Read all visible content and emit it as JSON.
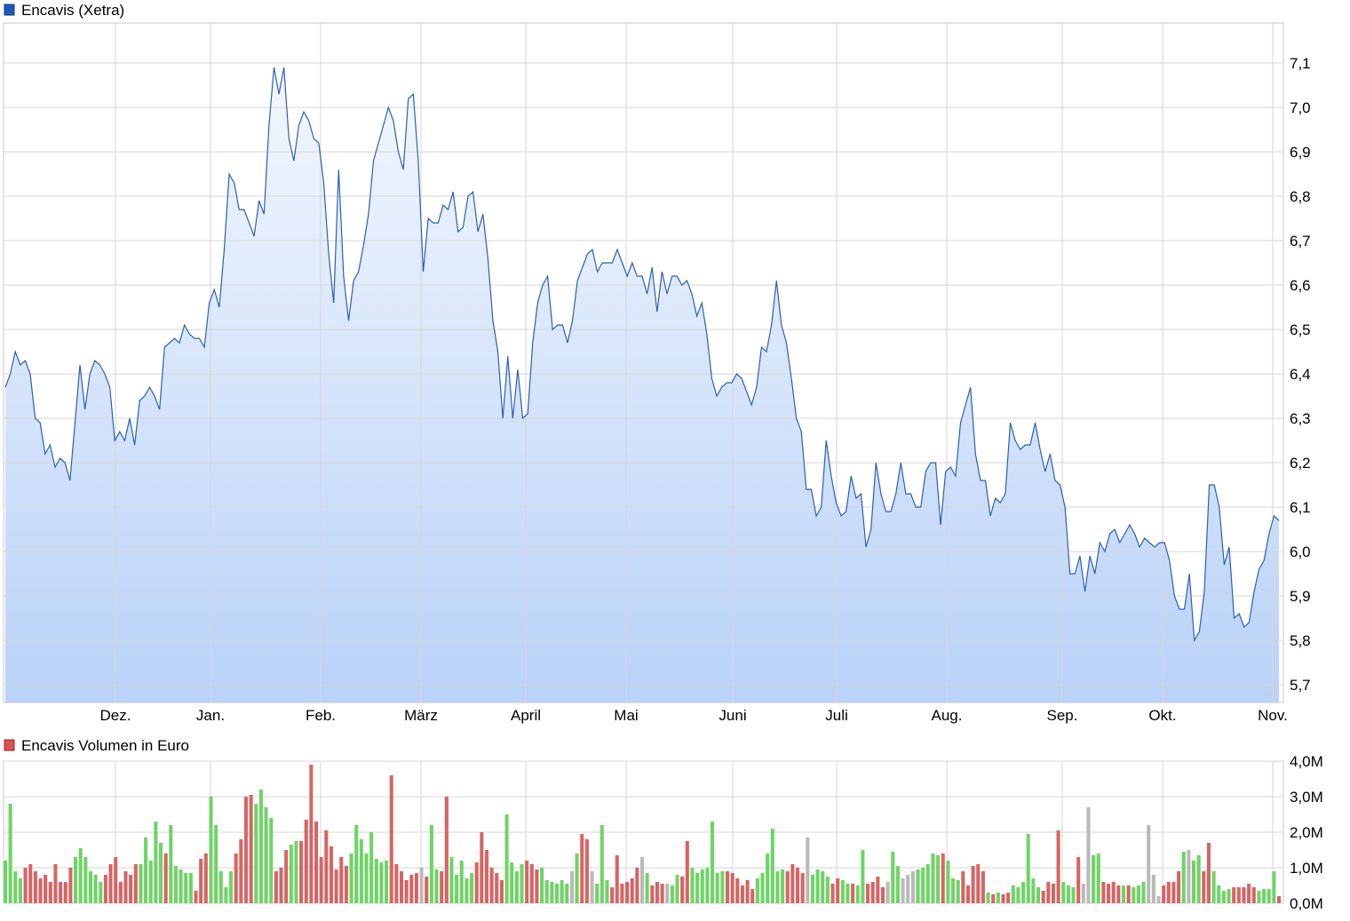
{
  "chart_data": [
    {
      "type": "area",
      "title": "Encavis (Xetra)",
      "legend": {
        "label": "Encavis (Xetra)",
        "color": "#1f57b8",
        "placement": "top-left"
      },
      "line_color": "#2b5fb3",
      "fill_top_color": "#f3f7fd",
      "fill_bottom_color": "#b9d2f8",
      "grid": true,
      "ylim": [
        5.66,
        7.19
      ],
      "y_scale": "linear",
      "y_ticks": [
        5.7,
        5.8,
        5.9,
        6.0,
        6.1,
        6.2,
        6.3,
        6.4,
        6.5,
        6.6,
        6.7,
        6.8,
        6.9,
        7.0,
        7.1
      ],
      "y_tick_labels": [
        "5,7",
        "5,8",
        "5,9",
        "6,0",
        "6,1",
        "6,2",
        "6,3",
        "6,4",
        "6,5",
        "6,6",
        "6,7",
        "6,8",
        "6,9",
        "7,0",
        "7,1"
      ],
      "x_month_labels": [
        "Dez.",
        "Jan.",
        "Feb.",
        "März",
        "April",
        "Mai",
        "Juni",
        "Juli",
        "Aug.",
        "Sep.",
        "Okt.",
        "Nov."
      ],
      "values": [
        6.37,
        6.4,
        6.45,
        6.42,
        6.43,
        6.4,
        6.3,
        6.29,
        6.22,
        6.24,
        6.19,
        6.21,
        6.2,
        6.16,
        6.29,
        6.42,
        6.32,
        6.4,
        6.43,
        6.42,
        6.4,
        6.37,
        6.25,
        6.27,
        6.25,
        6.3,
        6.24,
        6.34,
        6.35,
        6.37,
        6.35,
        6.32,
        6.46,
        6.47,
        6.48,
        6.47,
        6.51,
        6.49,
        6.48,
        6.48,
        6.46,
        6.56,
        6.59,
        6.55,
        6.68,
        6.85,
        6.83,
        6.77,
        6.77,
        6.74,
        6.71,
        6.79,
        6.76,
        6.96,
        7.09,
        7.03,
        7.09,
        6.93,
        6.88,
        6.96,
        6.99,
        6.97,
        6.93,
        6.92,
        6.83,
        6.67,
        6.56,
        6.86,
        6.62,
        6.52,
        6.61,
        6.63,
        6.69,
        6.76,
        6.88,
        6.92,
        6.96,
        7.0,
        6.97,
        6.9,
        6.86,
        7.02,
        7.03,
        6.88,
        6.63,
        6.75,
        6.74,
        6.74,
        6.78,
        6.77,
        6.81,
        6.72,
        6.73,
        6.8,
        6.81,
        6.72,
        6.76,
        6.66,
        6.52,
        6.45,
        6.3,
        6.44,
        6.3,
        6.41,
        6.3,
        6.31,
        6.47,
        6.56,
        6.6,
        6.62,
        6.5,
        6.51,
        6.51,
        6.47,
        6.52,
        6.61,
        6.64,
        6.67,
        6.68,
        6.63,
        6.65,
        6.65,
        6.65,
        6.68,
        6.65,
        6.62,
        6.65,
        6.62,
        6.62,
        6.58,
        6.64,
        6.54,
        6.63,
        6.58,
        6.62,
        6.62,
        6.6,
        6.61,
        6.58,
        6.53,
        6.56,
        6.49,
        6.39,
        6.35,
        6.37,
        6.38,
        6.38,
        6.4,
        6.39,
        6.36,
        6.33,
        6.37,
        6.46,
        6.45,
        6.51,
        6.61,
        6.51,
        6.47,
        6.39,
        6.3,
        6.27,
        6.14,
        6.14,
        6.08,
        6.1,
        6.25,
        6.17,
        6.11,
        6.08,
        6.09,
        6.17,
        6.12,
        6.13,
        6.01,
        6.05,
        6.2,
        6.13,
        6.09,
        6.09,
        6.13,
        6.2,
        6.13,
        6.13,
        6.1,
        6.1,
        6.18,
        6.2,
        6.2,
        6.06,
        6.18,
        6.19,
        6.17,
        6.29,
        6.33,
        6.37,
        6.22,
        6.16,
        6.16,
        6.08,
        6.12,
        6.11,
        6.13,
        6.29,
        6.25,
        6.23,
        6.24,
        6.24,
        6.29,
        6.23,
        6.18,
        6.22,
        6.16,
        6.15,
        6.1,
        5.95,
        5.95,
        5.99,
        5.91,
        5.99,
        5.95,
        6.02,
        6.0,
        6.04,
        6.05,
        6.02,
        6.04,
        6.06,
        6.04,
        6.01,
        6.03,
        6.02,
        6.01,
        6.02,
        6.02,
        5.98,
        5.9,
        5.87,
        5.87,
        5.95,
        5.8,
        5.82,
        5.91,
        6.15,
        6.15,
        6.1,
        5.97,
        6.01,
        5.85,
        5.86,
        5.83,
        5.84,
        5.91,
        5.96,
        5.98,
        6.04,
        6.08,
        6.07
      ]
    },
    {
      "type": "bar",
      "title": "Encavis Volumen in Euro",
      "legend": {
        "label": "Encavis Volumen in Euro",
        "color": "#d9534f",
        "placement": "top-left"
      },
      "colors": {
        "up": "#6ed466",
        "down": "#d76464",
        "flat": "#b9b9b9"
      },
      "grid": true,
      "ylim": [
        0,
        4.0
      ],
      "y_unit": "Mio. Euro",
      "y_ticks": [
        0,
        1,
        2,
        3,
        4
      ],
      "y_tick_labels": [
        "0,0M",
        "1,0M",
        "2,0M",
        "3,0M",
        "4,0M"
      ],
      "values": [
        1.2,
        2.8,
        0.9,
        0.7,
        1.0,
        1.1,
        0.9,
        0.7,
        0.8,
        0.6,
        1.1,
        0.6,
        0.6,
        1.0,
        1.3,
        1.55,
        1.3,
        0.9,
        0.8,
        0.6,
        0.8,
        1.1,
        1.3,
        0.6,
        0.9,
        0.8,
        1.1,
        1.1,
        1.85,
        1.2,
        2.3,
        1.7,
        1.4,
        2.2,
        1.05,
        0.95,
        0.85,
        0.85,
        0.35,
        1.25,
        1.4,
        3.0,
        2.2,
        0.9,
        0.45,
        0.9,
        1.4,
        1.8,
        3.0,
        3.05,
        2.8,
        3.2,
        2.7,
        2.4,
        0.9,
        1.0,
        1.5,
        1.65,
        1.75,
        1.75,
        2.35,
        3.9,
        2.3,
        1.3,
        2.05,
        1.6,
        0.95,
        1.3,
        1.05,
        1.4,
        2.2,
        1.8,
        1.4,
        2.0,
        1.25,
        1.15,
        1.2,
        3.6,
        1.1,
        0.9,
        0.65,
        0.8,
        0.85,
        1.0,
        0.75,
        2.2,
        0.95,
        0.9,
        3.0,
        1.3,
        0.8,
        1.2,
        0.7,
        0.85,
        1.15,
        2.0,
        1.5,
        1.0,
        0.85,
        0.65,
        2.5,
        1.15,
        0.9,
        1.1,
        1.2,
        1.1,
        0.95,
        1.0,
        0.65,
        0.6,
        0.55,
        0.65,
        0.55,
        0.9,
        1.4,
        1.95,
        1.8,
        0.9,
        0.55,
        2.2,
        0.65,
        0.45,
        1.35,
        0.55,
        0.6,
        0.7,
        1.0,
        1.3,
        0.85,
        0.5,
        0.6,
        0.55,
        0.55,
        0.5,
        0.8,
        0.75,
        1.75,
        1.0,
        0.85,
        0.95,
        1.0,
        2.3,
        0.85,
        0.9,
        0.9,
        0.85,
        0.7,
        0.5,
        0.65,
        0.4,
        0.7,
        0.85,
        1.4,
        2.1,
        0.9,
        0.95,
        0.9,
        1.1,
        1.0,
        0.85,
        1.85,
        0.8,
        0.95,
        0.9,
        0.75,
        0.55,
        0.7,
        0.65,
        0.55,
        0.55,
        0.5,
        1.5,
        0.55,
        0.6,
        0.75,
        0.45,
        0.6,
        1.45,
        1.05,
        0.7,
        0.8,
        0.9,
        0.95,
        1.0,
        1.1,
        1.4,
        1.35,
        1.4,
        1.2,
        0.7,
        0.65,
        0.9,
        0.5,
        1.05,
        1.1,
        0.9,
        0.3,
        0.25,
        0.3,
        0.25,
        0.3,
        0.5,
        0.45,
        0.6,
        1.95,
        0.7,
        0.45,
        0.35,
        0.6,
        0.55,
        2.05,
        0.6,
        0.5,
        0.45,
        1.3,
        0.55,
        2.7,
        1.35,
        1.4,
        0.6,
        0.55,
        0.6,
        0.5,
        0.5,
        0.5,
        0.45,
        0.5,
        0.6,
        2.2,
        0.8,
        0.2,
        0.5,
        0.6,
        0.6,
        0.9,
        1.45,
        1.5,
        1.2,
        1.35,
        0.9,
        1.7,
        0.9,
        0.5,
        0.35,
        0.4,
        0.45,
        0.45,
        0.45,
        0.55,
        0.45,
        0.35,
        0.4,
        0.4,
        0.9,
        0.2
      ],
      "directions": [
        "u",
        "u",
        "u",
        "u",
        "d",
        "d",
        "d",
        "d",
        "d",
        "d",
        "d",
        "d",
        "d",
        "d",
        "u",
        "u",
        "u",
        "u",
        "u",
        "u",
        "d",
        "d",
        "d",
        "d",
        "d",
        "d",
        "d",
        "u",
        "u",
        "u",
        "u",
        "u",
        "d",
        "u",
        "u",
        "u",
        "u",
        "u",
        "d",
        "d",
        "d",
        "u",
        "u",
        "u",
        "u",
        "u",
        "d",
        "d",
        "d",
        "d",
        "u",
        "u",
        "u",
        "u",
        "d",
        "d",
        "d",
        "u",
        "u",
        "d",
        "d",
        "d",
        "d",
        "d",
        "d",
        "d",
        "d",
        "d",
        "d",
        "u",
        "u",
        "u",
        "u",
        "u",
        "u",
        "u",
        "u",
        "d",
        "d",
        "d",
        "d",
        "d",
        "d",
        "f",
        "d",
        "u",
        "u",
        "d",
        "d",
        "u",
        "u",
        "u",
        "u",
        "u",
        "d",
        "d",
        "d",
        "d",
        "d",
        "d",
        "u",
        "u",
        "u",
        "u",
        "d",
        "d",
        "d",
        "u",
        "u",
        "u",
        "u",
        "u",
        "u",
        "f",
        "u",
        "d",
        "d",
        "f",
        "u",
        "u",
        "u",
        "d",
        "d",
        "d",
        "d",
        "d",
        "d",
        "f",
        "u",
        "d",
        "d",
        "d",
        "f",
        "u",
        "u",
        "d",
        "d",
        "u",
        "u",
        "u",
        "u",
        "u",
        "u",
        "u",
        "d",
        "d",
        "d",
        "d",
        "d",
        "d",
        "u",
        "u",
        "u",
        "u",
        "u",
        "u",
        "d",
        "d",
        "d",
        "d",
        "f",
        "u",
        "u",
        "u",
        "u",
        "d",
        "d",
        "u",
        "u",
        "d",
        "u",
        "u",
        "d",
        "d",
        "d",
        "d",
        "f",
        "u",
        "u",
        "f",
        "f",
        "f",
        "u",
        "u",
        "u",
        "u",
        "u",
        "d",
        "u",
        "u",
        "u",
        "d",
        "d",
        "d",
        "d",
        "d",
        "u",
        "d",
        "u",
        "d",
        "d",
        "u",
        "u",
        "u",
        "u",
        "u",
        "u",
        "d",
        "d",
        "d",
        "d",
        "u",
        "u",
        "u",
        "d",
        "f",
        "f",
        "u",
        "u",
        "d",
        "d",
        "d",
        "d",
        "u",
        "d",
        "u",
        "u",
        "u",
        "f",
        "f",
        "f",
        "d",
        "d",
        "d",
        "d",
        "u",
        "f",
        "u",
        "u",
        "d",
        "d",
        "u",
        "u",
        "u",
        "u",
        "d",
        "d",
        "d",
        "d",
        "d",
        "u",
        "u",
        "u",
        "u",
        "d"
      ]
    }
  ]
}
